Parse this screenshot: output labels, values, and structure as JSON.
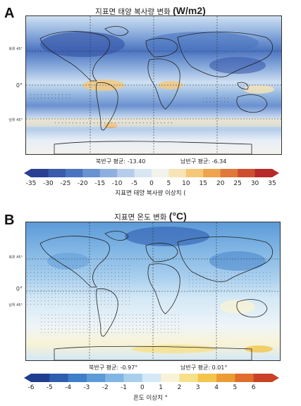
{
  "panels": [
    {
      "label": "A",
      "title": "지표면 태양 복사량 변화",
      "unit": "(W/m2)",
      "lat_labels": [
        "북위 45°",
        "0°",
        "남위 45°"
      ],
      "nh_avg": "북반구 평균: -13.40",
      "sh_avg": "남반구 평균: -6.34",
      "colorbar_ticks": [
        "-35",
        "-30",
        "-25",
        "-20",
        "-15",
        "-10",
        "-5",
        "0",
        "5",
        "10",
        "15",
        "20",
        "25",
        "30",
        "35"
      ],
      "colorbar_label": "지표면 태양 복사량 이상치 (",
      "colors": [
        "#2b3f93",
        "#3a5aab",
        "#4b74c0",
        "#6a91d0",
        "#8fb0de",
        "#b5cdea",
        "#d8e6f4",
        "#f3f3ee",
        "#f7e3b5",
        "#f5c879",
        "#eea34d",
        "#e0783a",
        "#cf4e2f",
        "#b8282a"
      ]
    },
    {
      "label": "B",
      "title": "지표면 온도 변화",
      "unit": "(°C)",
      "lat_labels": [
        "북위 45°",
        "0°",
        "남위 45°"
      ],
      "nh_avg": "북반구 평균: -0.97°",
      "sh_avg": "남반구 평균: 0.01°",
      "colorbar_ticks": [
        "-6",
        "-5",
        "-4",
        "-3",
        "-2",
        "-1",
        "0",
        "1",
        "2",
        "3",
        "4",
        "5",
        "6"
      ],
      "colorbar_label": "온도 이상치 °",
      "colors": [
        "#1f3e8f",
        "#2e5eb0",
        "#3f7ec8",
        "#5c9ad8",
        "#81b6e4",
        "#a9cfee",
        "#d4e8f6",
        "#f8f3d6",
        "#f6e08a",
        "#f3c54b",
        "#ec9b35",
        "#e06d2c",
        "#c94226"
      ]
    }
  ]
}
